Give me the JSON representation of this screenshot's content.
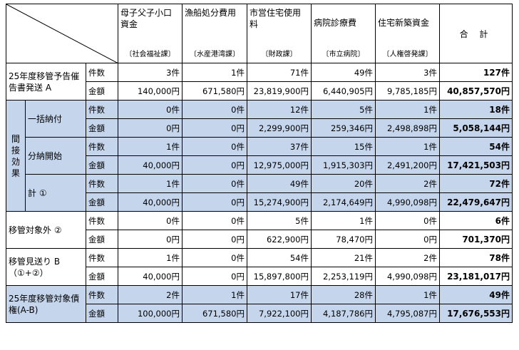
{
  "columns": [
    {
      "name": "母子父子小口資金",
      "dept": "〔社会福祉課〕"
    },
    {
      "name": "漁船処分費用",
      "dept": "〔水産港湾課〕"
    },
    {
      "name": "市営住宅使用料",
      "dept": "〔財政課〕"
    },
    {
      "name": "病院診療費",
      "dept": "〔市立病院〕"
    },
    {
      "name": "住宅新築資金",
      "dept": "〔人権啓発課〕"
    }
  ],
  "total_header": "合 計",
  "metric_labels": {
    "count": "件数",
    "amount": "金額"
  },
  "indirect_label": "間接効果",
  "rows": [
    {
      "label": "25年度移管予告催告書発送 A",
      "count": [
        "3件",
        "1件",
        "71件",
        "49件",
        "3件"
      ],
      "count_total": "127件",
      "amount": [
        "140,000円",
        "671,580円",
        "23,819,900円",
        "6,440,905円",
        "9,785,185円"
      ],
      "amount_total": "40,857,570円"
    },
    {
      "label": "一括納付",
      "count": [
        "0件",
        "0件",
        "12件",
        "5件",
        "1件"
      ],
      "count_total": "18件",
      "amount": [
        "0円",
        "0円",
        "2,299,900円",
        "259,346円",
        "2,498,898円"
      ],
      "amount_total": "5,058,144円"
    },
    {
      "label": "分納開始",
      "count": [
        "1件",
        "0件",
        "37件",
        "15件",
        "1件"
      ],
      "count_total": "54件",
      "amount": [
        "40,000円",
        "0円",
        "12,975,000円",
        "1,915,303円",
        "2,491,200円"
      ],
      "amount_total": "17,421,503円"
    },
    {
      "label": "計 ①",
      "count": [
        "1件",
        "0件",
        "49件",
        "20件",
        "2件"
      ],
      "count_total": "72件",
      "amount": [
        "40,000円",
        "0円",
        "15,274,900円",
        "2,174,649円",
        "4,990,098円"
      ],
      "amount_total": "22,479,647円"
    },
    {
      "label": "移管対象外 ②",
      "count": [
        "0件",
        "0件",
        "5件",
        "1件",
        "0件"
      ],
      "count_total": "6件",
      "amount": [
        "0円",
        "0円",
        "622,900円",
        "78,470円",
        "0円"
      ],
      "amount_total": "701,370円"
    },
    {
      "label": "移管見送り B（①+②）",
      "count": [
        "1件",
        "0件",
        "54件",
        "21件",
        "2件"
      ],
      "count_total": "78件",
      "amount": [
        "40,000円",
        "0円",
        "15,897,800円",
        "2,253,119円",
        "4,990,098円"
      ],
      "amount_total": "23,181,017円"
    },
    {
      "label": "25年度移管対象債権(A-B)",
      "count": [
        "2件",
        "1件",
        "17件",
        "28件",
        "1件"
      ],
      "count_total": "49件",
      "amount": [
        "100,000円",
        "671,580円",
        "7,922,100円",
        "4,187,786円",
        "4,795,087円"
      ],
      "amount_total": "17,676,553円"
    }
  ]
}
